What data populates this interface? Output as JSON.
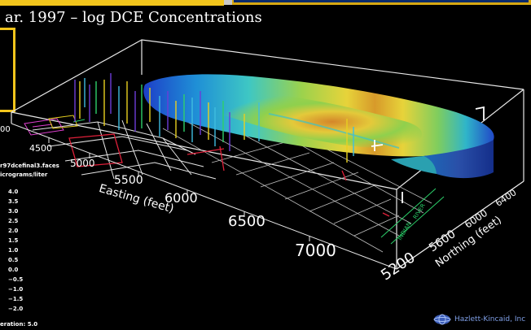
{
  "header": {
    "title": "ar. 1997 – log DCE Concentrations"
  },
  "side_panel": {
    "file_label": "r97dcefinal3.faces",
    "units_label": "icrograms/liter",
    "iteration_label": "eration:  5.0"
  },
  "legend": {
    "values": [
      "4.0",
      "3.5",
      "3.0",
      "2.5",
      "2.0",
      "1.5",
      "1.0",
      "0.5",
      "0.0",
      "−0.5",
      "−1.0",
      "−1.5",
      "−2.0"
    ]
  },
  "axes": {
    "easting_title": "Easting (feet)",
    "northing_title": "Northing (feet)",
    "easting_ticks": [
      "4500",
      "5000",
      "5500",
      "6000",
      "6500",
      "7000"
    ],
    "northing_ticks": [
      "5200",
      "5600",
      "6000",
      "6400"
    ],
    "left_partial_tick": "00"
  },
  "map_labels": {
    "indian": "INDIAN",
    "river": "RIVER"
  },
  "brand": {
    "name": "Hazlett-Kincaid, Inc"
  },
  "colors": {
    "accent_gold": "#f2c51c",
    "brand_blue": "#7f9fe6"
  }
}
